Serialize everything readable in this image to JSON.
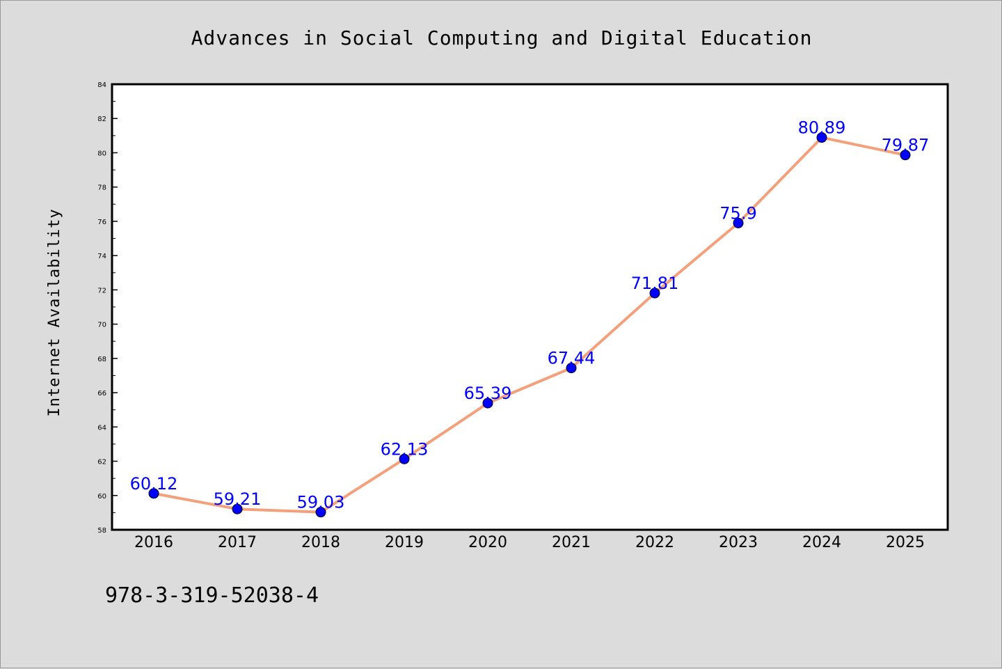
{
  "chart_data": {
    "type": "line",
    "title": "Advances in Social Computing and Digital Education",
    "xlabel": "",
    "ylabel": "Internet Availability",
    "categories": [
      "2016",
      "2017",
      "2018",
      "2019",
      "2020",
      "2021",
      "2022",
      "2023",
      "2024",
      "2025"
    ],
    "series": [
      {
        "values": [
          60.12,
          59.21,
          59.03,
          62.13,
          65.39,
          67.44,
          71.81,
          75.9,
          80.89,
          79.87
        ],
        "data_labels": [
          "60.12",
          "59.21",
          "59.03",
          "62.13",
          "65.39",
          "67.44",
          "71.81",
          "75.9",
          "80.89",
          "79.87"
        ],
        "line_color": "#f4a07a",
        "marker_color": "#0000ff"
      }
    ],
    "ylim": [
      58,
      84
    ],
    "yticks": [
      "58",
      "60",
      "62",
      "64",
      "66",
      "68",
      "70",
      "72",
      "74",
      "76",
      "78",
      "80",
      "82",
      "84"
    ],
    "grid": false,
    "legend": "none"
  },
  "footnote": "978-3-319-52038-4",
  "colors": {
    "background": "#dcdcdc",
    "plot_background": "#ffffff",
    "line": "#f4a07a",
    "marker": "#0000ff",
    "data_label": "#0000ff"
  }
}
